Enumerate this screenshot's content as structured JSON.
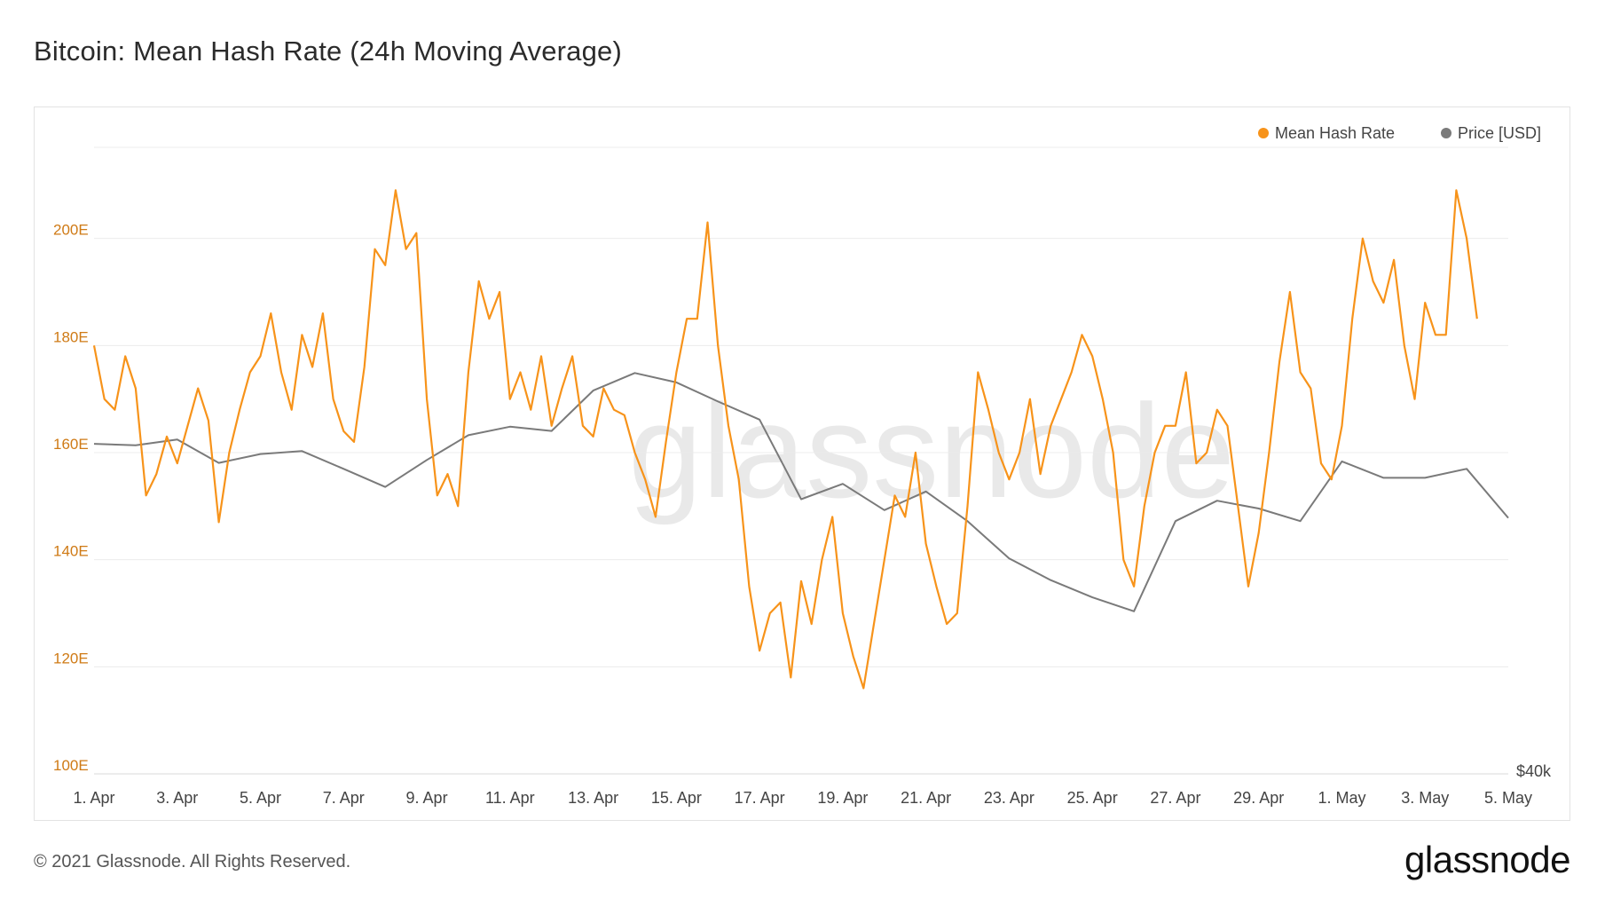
{
  "title": "Bitcoin: Mean Hash Rate (24h Moving Average)",
  "footer": {
    "copyright": "© 2021 Glassnode. All Rights Reserved.",
    "logo_text": "glassnode"
  },
  "watermark": "glassnode",
  "colors": {
    "hash_rate": "#f7931a",
    "price": "#7a7a7a",
    "grid": "#ececec",
    "axis_label_left": "#cf7a15"
  },
  "chart_data": {
    "type": "line",
    "legend": [
      {
        "name": "Mean Hash Rate",
        "color": "#f7931a"
      },
      {
        "name": "Price [USD]",
        "color": "#7a7a7a"
      }
    ],
    "legend_placement": "top-right",
    "grid": true,
    "x_range": [
      "2021-04-01",
      "2021-05-05"
    ],
    "x_tick_labels": [
      "1. Apr",
      "3. Apr",
      "5. Apr",
      "7. Apr",
      "9. Apr",
      "11. Apr",
      "13. Apr",
      "15. Apr",
      "17. Apr",
      "19. Apr",
      "21. Apr",
      "23. Apr",
      "25. Apr",
      "27. Apr",
      "29. Apr",
      "1. May",
      "3. May",
      "5. May"
    ],
    "y_left": {
      "label_unit": "E",
      "ticks": [
        "100E",
        "120E",
        "140E",
        "160E",
        "180E",
        "200E"
      ],
      "ylim": [
        100,
        220
      ]
    },
    "y_right": {
      "ticks": [
        "$40k"
      ],
      "note": "price axis (log scale), only bottom tick label visible"
    },
    "series": [
      {
        "name": "Mean Hash Rate",
        "axis": "left",
        "points": [
          [
            "2021-04-01 00:00",
            180
          ],
          [
            "2021-04-01 06:00",
            170
          ],
          [
            "2021-04-01 12:00",
            168
          ],
          [
            "2021-04-01 18:00",
            178
          ],
          [
            "2021-04-02 00:00",
            172
          ],
          [
            "2021-04-02 06:00",
            152
          ],
          [
            "2021-04-02 12:00",
            156
          ],
          [
            "2021-04-02 18:00",
            163
          ],
          [
            "2021-04-03 00:00",
            158
          ],
          [
            "2021-04-03 06:00",
            165
          ],
          [
            "2021-04-03 12:00",
            172
          ],
          [
            "2021-04-03 18:00",
            166
          ],
          [
            "2021-04-04 00:00",
            147
          ],
          [
            "2021-04-04 06:00",
            160
          ],
          [
            "2021-04-04 12:00",
            168
          ],
          [
            "2021-04-04 18:00",
            175
          ],
          [
            "2021-04-05 00:00",
            178
          ],
          [
            "2021-04-05 06:00",
            186
          ],
          [
            "2021-04-05 12:00",
            175
          ],
          [
            "2021-04-05 18:00",
            168
          ],
          [
            "2021-04-06 00:00",
            182
          ],
          [
            "2021-04-06 06:00",
            176
          ],
          [
            "2021-04-06 12:00",
            186
          ],
          [
            "2021-04-06 18:00",
            170
          ],
          [
            "2021-04-07 00:00",
            164
          ],
          [
            "2021-04-07 06:00",
            162
          ],
          [
            "2021-04-07 12:00",
            176
          ],
          [
            "2021-04-07 18:00",
            198
          ],
          [
            "2021-04-08 00:00",
            195
          ],
          [
            "2021-04-08 06:00",
            209
          ],
          [
            "2021-04-08 12:00",
            198
          ],
          [
            "2021-04-08 18:00",
            201
          ],
          [
            "2021-04-09 00:00",
            170
          ],
          [
            "2021-04-09 06:00",
            152
          ],
          [
            "2021-04-09 12:00",
            156
          ],
          [
            "2021-04-09 18:00",
            150
          ],
          [
            "2021-04-10 00:00",
            175
          ],
          [
            "2021-04-10 06:00",
            192
          ],
          [
            "2021-04-10 12:00",
            185
          ],
          [
            "2021-04-10 18:00",
            190
          ],
          [
            "2021-04-11 00:00",
            170
          ],
          [
            "2021-04-11 06:00",
            175
          ],
          [
            "2021-04-11 12:00",
            168
          ],
          [
            "2021-04-11 18:00",
            178
          ],
          [
            "2021-04-12 00:00",
            165
          ],
          [
            "2021-04-12 06:00",
            172
          ],
          [
            "2021-04-12 12:00",
            178
          ],
          [
            "2021-04-12 18:00",
            165
          ],
          [
            "2021-04-13 00:00",
            163
          ],
          [
            "2021-04-13 06:00",
            172
          ],
          [
            "2021-04-13 12:00",
            168
          ],
          [
            "2021-04-13 18:00",
            167
          ],
          [
            "2021-04-14 00:00",
            160
          ],
          [
            "2021-04-14 06:00",
            155
          ],
          [
            "2021-04-14 12:00",
            148
          ],
          [
            "2021-04-14 18:00",
            162
          ],
          [
            "2021-04-15 00:00",
            175
          ],
          [
            "2021-04-15 06:00",
            185
          ],
          [
            "2021-04-15 12:00",
            185
          ],
          [
            "2021-04-15 18:00",
            203
          ],
          [
            "2021-04-16 00:00",
            180
          ],
          [
            "2021-04-16 06:00",
            165
          ],
          [
            "2021-04-16 12:00",
            155
          ],
          [
            "2021-04-16 18:00",
            135
          ],
          [
            "2021-04-17 00:00",
            123
          ],
          [
            "2021-04-17 06:00",
            130
          ],
          [
            "2021-04-17 12:00",
            132
          ],
          [
            "2021-04-17 18:00",
            118
          ],
          [
            "2021-04-18 00:00",
            136
          ],
          [
            "2021-04-18 06:00",
            128
          ],
          [
            "2021-04-18 12:00",
            140
          ],
          [
            "2021-04-18 18:00",
            148
          ],
          [
            "2021-04-19 00:00",
            130
          ],
          [
            "2021-04-19 06:00",
            122
          ],
          [
            "2021-04-19 12:00",
            116
          ],
          [
            "2021-04-19 18:00",
            128
          ],
          [
            "2021-04-20 00:00",
            140
          ],
          [
            "2021-04-20 06:00",
            152
          ],
          [
            "2021-04-20 12:00",
            148
          ],
          [
            "2021-04-20 18:00",
            160
          ],
          [
            "2021-04-21 00:00",
            143
          ],
          [
            "2021-04-21 06:00",
            135
          ],
          [
            "2021-04-21 12:00",
            128
          ],
          [
            "2021-04-21 18:00",
            130
          ],
          [
            "2021-04-22 00:00",
            150
          ],
          [
            "2021-04-22 06:00",
            175
          ],
          [
            "2021-04-22 12:00",
            168
          ],
          [
            "2021-04-22 18:00",
            160
          ],
          [
            "2021-04-23 00:00",
            155
          ],
          [
            "2021-04-23 06:00",
            160
          ],
          [
            "2021-04-23 12:00",
            170
          ],
          [
            "2021-04-23 18:00",
            156
          ],
          [
            "2021-04-24 00:00",
            165
          ],
          [
            "2021-04-24 06:00",
            170
          ],
          [
            "2021-04-24 12:00",
            175
          ],
          [
            "2021-04-24 18:00",
            182
          ],
          [
            "2021-04-25 00:00",
            178
          ],
          [
            "2021-04-25 06:00",
            170
          ],
          [
            "2021-04-25 12:00",
            160
          ],
          [
            "2021-04-25 18:00",
            140
          ],
          [
            "2021-04-26 00:00",
            135
          ],
          [
            "2021-04-26 06:00",
            150
          ],
          [
            "2021-04-26 12:00",
            160
          ],
          [
            "2021-04-26 18:00",
            165
          ],
          [
            "2021-04-27 00:00",
            165
          ],
          [
            "2021-04-27 06:00",
            175
          ],
          [
            "2021-04-27 12:00",
            158
          ],
          [
            "2021-04-27 18:00",
            160
          ],
          [
            "2021-04-28 00:00",
            168
          ],
          [
            "2021-04-28 06:00",
            165
          ],
          [
            "2021-04-28 12:00",
            150
          ],
          [
            "2021-04-28 18:00",
            135
          ],
          [
            "2021-04-29 00:00",
            145
          ],
          [
            "2021-04-29 06:00",
            160
          ],
          [
            "2021-04-29 12:00",
            177
          ],
          [
            "2021-04-29 18:00",
            190
          ],
          [
            "2021-04-30 00:00",
            175
          ],
          [
            "2021-04-30 06:00",
            172
          ],
          [
            "2021-04-30 12:00",
            158
          ],
          [
            "2021-04-30 18:00",
            155
          ],
          [
            "2021-05-01 00:00",
            165
          ],
          [
            "2021-05-01 06:00",
            185
          ],
          [
            "2021-05-01 12:00",
            200
          ],
          [
            "2021-05-01 18:00",
            192
          ],
          [
            "2021-05-02 00:00",
            188
          ],
          [
            "2021-05-02 06:00",
            196
          ],
          [
            "2021-05-02 12:00",
            180
          ],
          [
            "2021-05-02 18:00",
            170
          ],
          [
            "2021-05-03 00:00",
            188
          ],
          [
            "2021-05-03 06:00",
            182
          ],
          [
            "2021-05-03 12:00",
            182
          ],
          [
            "2021-05-03 18:00",
            209
          ],
          [
            "2021-05-04 00:00",
            200
          ],
          [
            "2021-05-04 06:00",
            185
          ]
        ]
      },
      {
        "name": "Price [USD]",
        "axis": "right",
        "points": [
          [
            "2021-04-01 00:00",
            58900
          ],
          [
            "2021-04-02 00:00",
            58800
          ],
          [
            "2021-04-03 00:00",
            59200
          ],
          [
            "2021-04-04 00:00",
            57600
          ],
          [
            "2021-04-05 00:00",
            58200
          ],
          [
            "2021-04-06 00:00",
            58400
          ],
          [
            "2021-04-07 00:00",
            57200
          ],
          [
            "2021-04-08 00:00",
            56000
          ],
          [
            "2021-04-09 00:00",
            57800
          ],
          [
            "2021-04-10 00:00",
            59500
          ],
          [
            "2021-04-11 00:00",
            60100
          ],
          [
            "2021-04-12 00:00",
            59800
          ],
          [
            "2021-04-13 00:00",
            62700
          ],
          [
            "2021-04-14 00:00",
            64000
          ],
          [
            "2021-04-15 00:00",
            63300
          ],
          [
            "2021-04-16 00:00",
            61900
          ],
          [
            "2021-04-17 00:00",
            60600
          ],
          [
            "2021-04-18 00:00",
            55200
          ],
          [
            "2021-04-19 00:00",
            56200
          ],
          [
            "2021-04-20 00:00",
            54500
          ],
          [
            "2021-04-21 00:00",
            55700
          ],
          [
            "2021-04-22 00:00",
            53800
          ],
          [
            "2021-04-23 00:00",
            51500
          ],
          [
            "2021-04-24 00:00",
            50200
          ],
          [
            "2021-04-25 00:00",
            49200
          ],
          [
            "2021-04-26 00:00",
            48400
          ],
          [
            "2021-04-27 00:00",
            53800
          ],
          [
            "2021-04-28 00:00",
            55100
          ],
          [
            "2021-04-29 00:00",
            54600
          ],
          [
            "2021-04-30 00:00",
            53800
          ],
          [
            "2021-05-01 00:00",
            57700
          ],
          [
            "2021-05-02 00:00",
            56600
          ],
          [
            "2021-05-03 00:00",
            56600
          ],
          [
            "2021-05-04 00:00",
            57200
          ],
          [
            "2021-05-05 00:00",
            54000
          ]
        ]
      }
    ]
  }
}
